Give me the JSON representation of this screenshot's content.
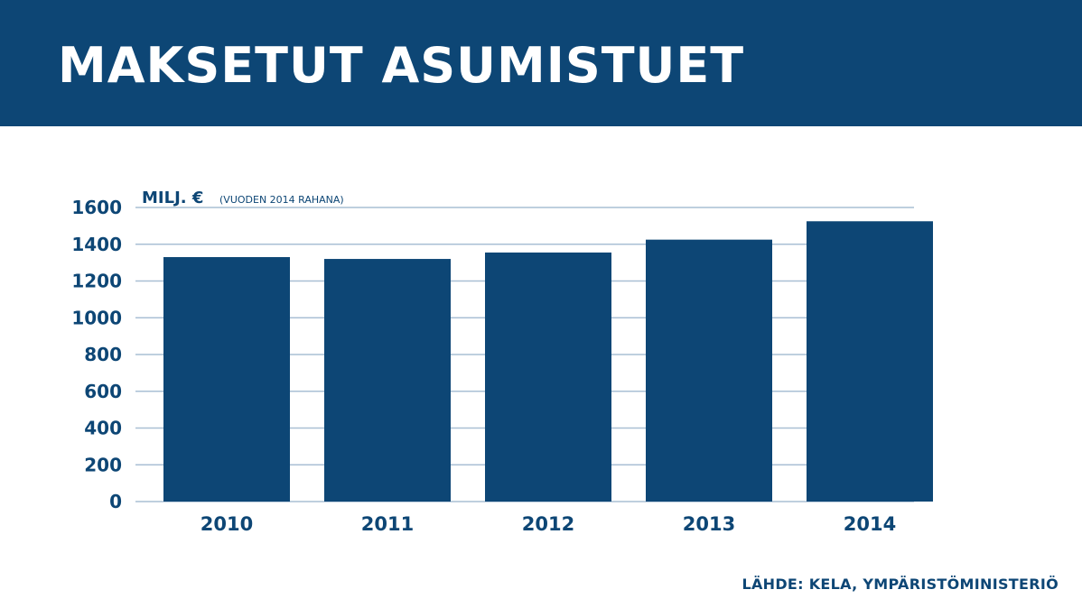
{
  "header": {
    "title": "MAKSETUT ASUMISTUET"
  },
  "colors": {
    "primary": "#0d4675",
    "gridline": "#a9bfd4",
    "background": "#ffffff"
  },
  "chart_data": {
    "type": "bar",
    "ylabel_main": "MILJ. €",
    "ylabel_note": "(VUODEN 2014 RAHANA)",
    "categories": [
      "2010",
      "2011",
      "2012",
      "2013",
      "2014"
    ],
    "values": [
      1330,
      1320,
      1355,
      1425,
      1525
    ],
    "ylim": [
      0,
      1600
    ],
    "yticks": [
      0,
      200,
      400,
      600,
      800,
      1000,
      1200,
      1400,
      1600
    ],
    "grid": true,
    "legend": "none"
  },
  "footer": {
    "source": "LÄHDE: KELA, YMPÄRISTÖMINISTERIÖ"
  }
}
